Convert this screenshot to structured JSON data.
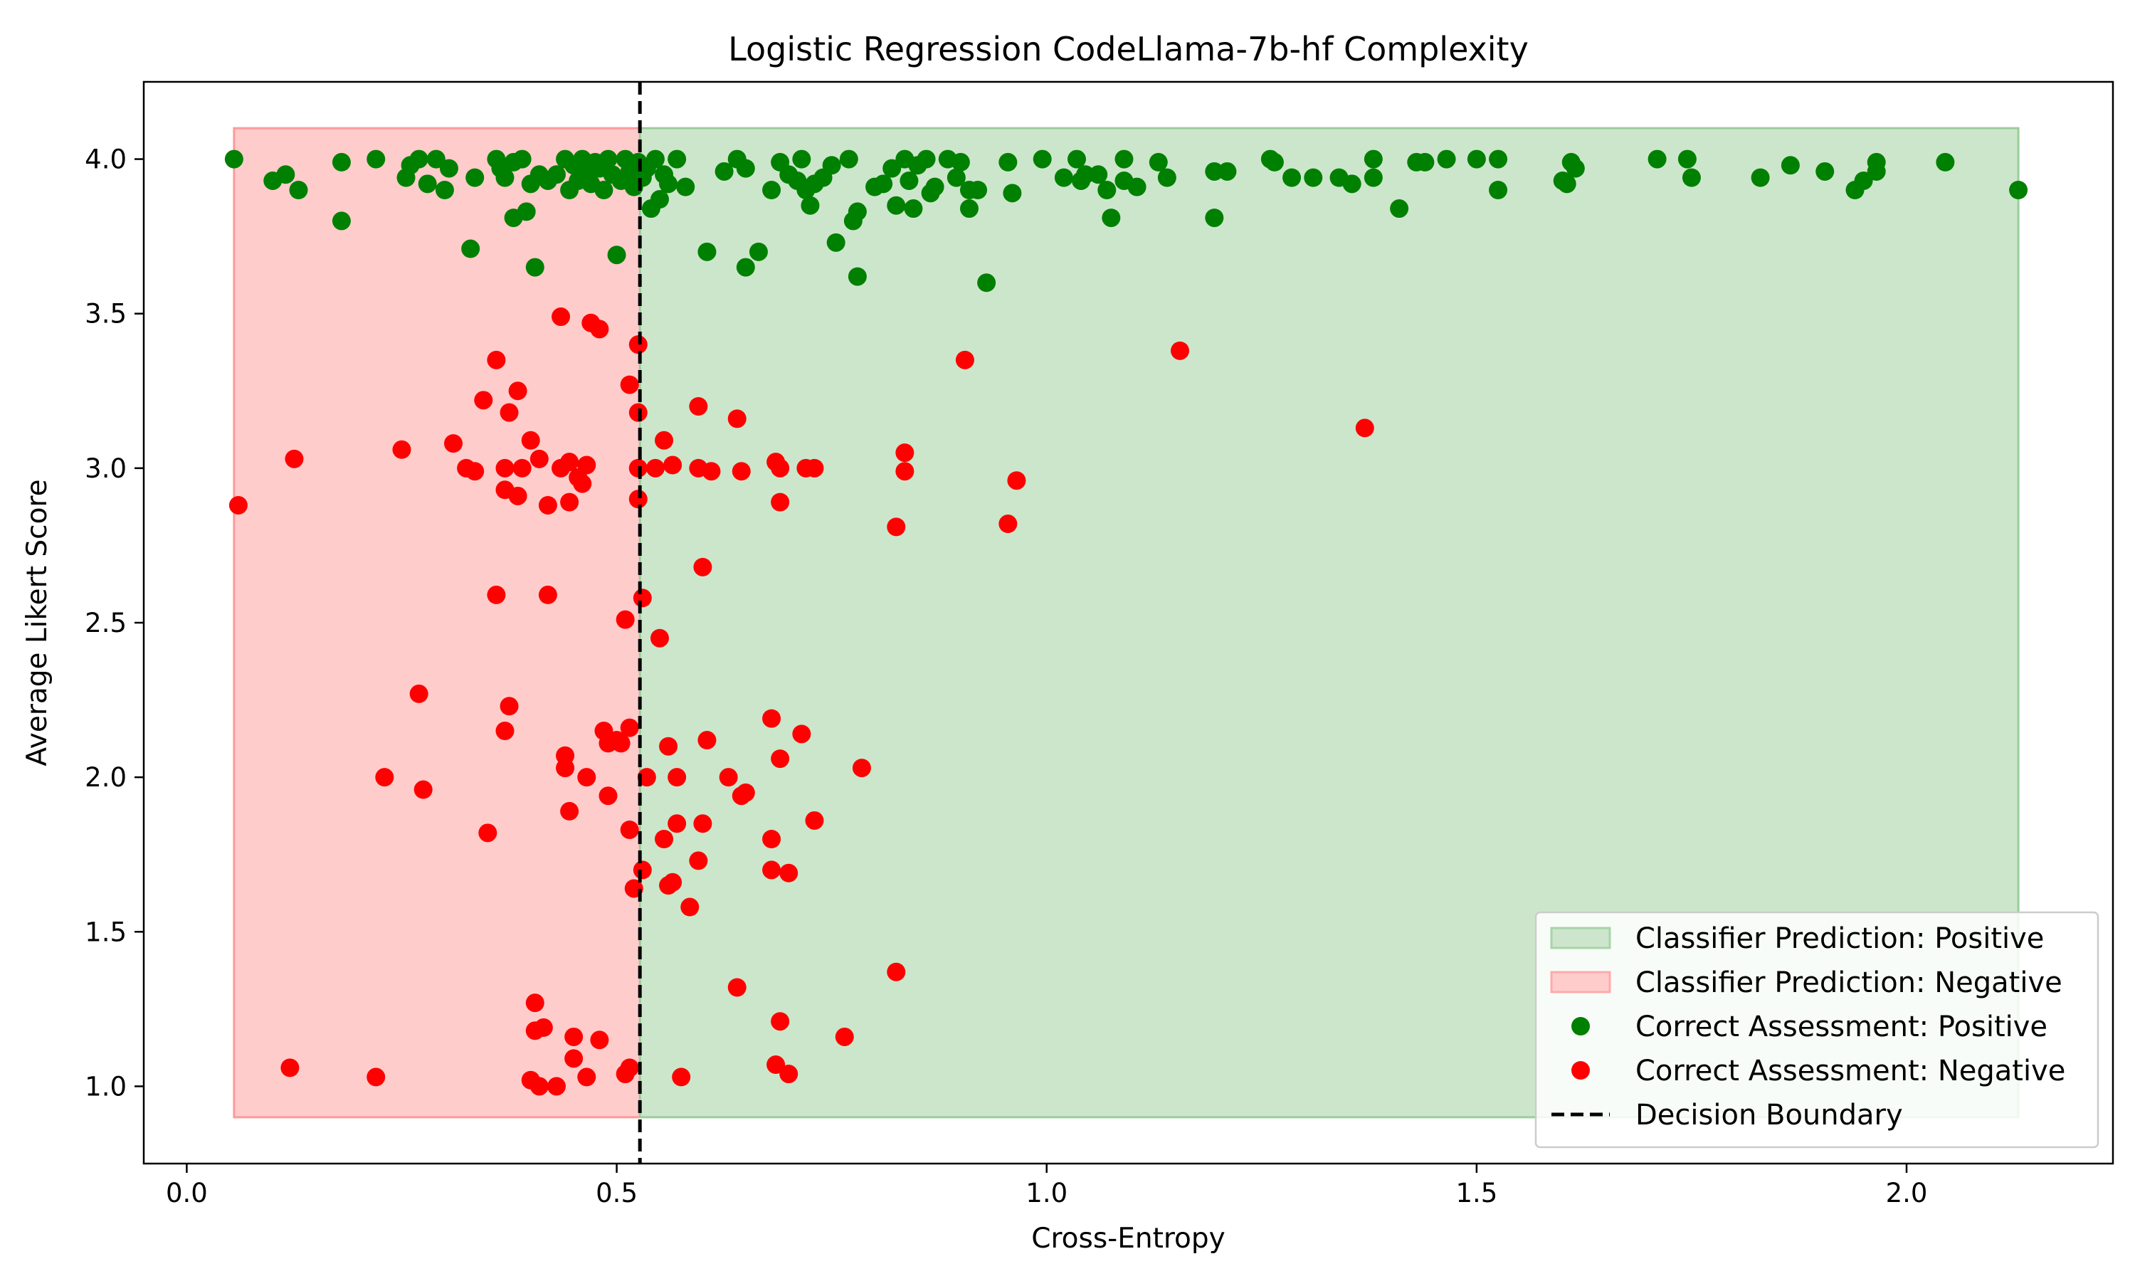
{
  "chart_data": {
    "type": "scatter",
    "title": "Logistic Regression CodeLlama-7b-hf Complexity",
    "xlabel": "Cross-Entropy",
    "ylabel": "Average Likert Score",
    "xlim": [
      -0.05,
      2.24
    ],
    "ylim": [
      0.75,
      4.25
    ],
    "xticks": [
      0.0,
      0.5,
      1.0,
      1.5,
      2.0
    ],
    "xtick_labels": [
      "0.0",
      "0.5",
      "1.0",
      "1.5",
      "2.0"
    ],
    "yticks": [
      1.0,
      1.5,
      2.0,
      2.5,
      3.0,
      3.5,
      4.0
    ],
    "ytick_labels": [
      "1.0",
      "1.5",
      "2.0",
      "2.5",
      "3.0",
      "3.5",
      "4.0"
    ],
    "grid": false,
    "legend_position": "bottom-right",
    "decision_boundary": 0.527,
    "regions": [
      {
        "name": "Classifier Prediction: Negative",
        "x": [
          0.055,
          0.527
        ],
        "y": [
          0.9,
          4.1
        ],
        "color": "#ff9999"
      },
      {
        "name": "Classifier Prediction: Positive",
        "x": [
          0.527,
          2.13
        ],
        "y": [
          0.9,
          4.1
        ],
        "color": "#9acd9a"
      }
    ],
    "legend": [
      {
        "label": "Classifier Prediction: Positive",
        "kind": "patch",
        "color": "#cde5cd",
        "edge": "#a8d4a8"
      },
      {
        "label": "Classifier Prediction: Negative",
        "kind": "patch",
        "color": "#ffcccc",
        "edge": "#ffaaaa"
      },
      {
        "label": "Correct Assessment: Positive",
        "kind": "dot",
        "color": "#008000"
      },
      {
        "label": "Correct Assessment: Negative",
        "kind": "dot",
        "color": "#ff0000"
      },
      {
        "label": "Decision Boundary",
        "kind": "dash",
        "color": "#000000"
      }
    ],
    "series": [
      {
        "name": "Correct Assessment: Positive",
        "color": "#008000",
        "points": [
          [
            0.055,
            4.0
          ],
          [
            0.1,
            3.93
          ],
          [
            0.115,
            3.95
          ],
          [
            0.13,
            3.9
          ],
          [
            0.18,
            3.99
          ],
          [
            0.18,
            3.8
          ],
          [
            0.22,
            4.0
          ],
          [
            0.255,
            3.94
          ],
          [
            0.26,
            3.98
          ],
          [
            0.27,
            4.0
          ],
          [
            0.28,
            3.92
          ],
          [
            0.29,
            4.0
          ],
          [
            0.3,
            3.9
          ],
          [
            0.305,
            3.97
          ],
          [
            0.33,
            3.71
          ],
          [
            0.335,
            3.94
          ],
          [
            0.36,
            4.0
          ],
          [
            0.365,
            3.97
          ],
          [
            0.37,
            3.94
          ],
          [
            0.38,
            3.99
          ],
          [
            0.38,
            3.81
          ],
          [
            0.39,
            4.0
          ],
          [
            0.395,
            3.83
          ],
          [
            0.4,
            3.92
          ],
          [
            0.405,
            3.65
          ],
          [
            0.41,
            3.95
          ],
          [
            0.42,
            3.93
          ],
          [
            0.43,
            3.95
          ],
          [
            0.44,
            4.0
          ],
          [
            0.445,
            3.9
          ],
          [
            0.45,
            3.98
          ],
          [
            0.455,
            3.93
          ],
          [
            0.46,
            4.0
          ],
          [
            0.465,
            3.95
          ],
          [
            0.47,
            3.92
          ],
          [
            0.475,
            3.99
          ],
          [
            0.48,
            3.97
          ],
          [
            0.485,
            3.9
          ],
          [
            0.49,
            4.0
          ],
          [
            0.495,
            3.95
          ],
          [
            0.5,
            3.69
          ],
          [
            0.505,
            3.93
          ],
          [
            0.51,
            4.0
          ],
          [
            0.515,
            3.96
          ],
          [
            0.52,
            3.91
          ],
          [
            0.525,
            3.99
          ],
          [
            0.53,
            3.94
          ],
          [
            0.535,
            3.97
          ],
          [
            0.54,
            3.84
          ],
          [
            0.545,
            4.0
          ],
          [
            0.55,
            3.87
          ],
          [
            0.555,
            3.95
          ],
          [
            0.56,
            3.92
          ],
          [
            0.57,
            4.0
          ],
          [
            0.58,
            3.91
          ],
          [
            0.605,
            3.7
          ],
          [
            0.625,
            3.96
          ],
          [
            0.64,
            4.0
          ],
          [
            0.65,
            3.97
          ],
          [
            0.65,
            3.65
          ],
          [
            0.665,
            3.7
          ],
          [
            0.68,
            3.9
          ],
          [
            0.69,
            3.99
          ],
          [
            0.7,
            3.95
          ],
          [
            0.71,
            3.93
          ],
          [
            0.715,
            4.0
          ],
          [
            0.72,
            3.9
          ],
          [
            0.725,
            3.85
          ],
          [
            0.73,
            3.92
          ],
          [
            0.74,
            3.94
          ],
          [
            0.75,
            3.98
          ],
          [
            0.755,
            3.73
          ],
          [
            0.77,
            4.0
          ],
          [
            0.775,
            3.8
          ],
          [
            0.78,
            3.83
          ],
          [
            0.78,
            3.62
          ],
          [
            0.8,
            3.91
          ],
          [
            0.81,
            3.92
          ],
          [
            0.82,
            3.97
          ],
          [
            0.825,
            3.85
          ],
          [
            0.835,
            4.0
          ],
          [
            0.84,
            3.93
          ],
          [
            0.845,
            3.84
          ],
          [
            0.85,
            3.98
          ],
          [
            0.86,
            4.0
          ],
          [
            0.865,
            3.89
          ],
          [
            0.87,
            3.91
          ],
          [
            0.885,
            4.0
          ],
          [
            0.895,
            3.94
          ],
          [
            0.9,
            3.99
          ],
          [
            0.91,
            3.9
          ],
          [
            0.91,
            3.84
          ],
          [
            0.92,
            3.9
          ],
          [
            0.93,
            3.6
          ],
          [
            0.955,
            3.99
          ],
          [
            0.96,
            3.89
          ],
          [
            0.995,
            4.0
          ],
          [
            1.02,
            3.94
          ],
          [
            1.035,
            4.0
          ],
          [
            1.04,
            3.93
          ],
          [
            1.045,
            3.95
          ],
          [
            1.06,
            3.95
          ],
          [
            1.07,
            3.9
          ],
          [
            1.075,
            3.81
          ],
          [
            1.09,
            4.0
          ],
          [
            1.09,
            3.93
          ],
          [
            1.105,
            3.91
          ],
          [
            1.13,
            3.99
          ],
          [
            1.14,
            3.94
          ],
          [
            1.195,
            3.96
          ],
          [
            1.195,
            3.81
          ],
          [
            1.21,
            3.96
          ],
          [
            1.26,
            4.0
          ],
          [
            1.265,
            3.99
          ],
          [
            1.285,
            3.94
          ],
          [
            1.31,
            3.94
          ],
          [
            1.34,
            3.94
          ],
          [
            1.355,
            3.92
          ],
          [
            1.38,
            4.0
          ],
          [
            1.38,
            3.94
          ],
          [
            1.41,
            3.84
          ],
          [
            1.43,
            3.99
          ],
          [
            1.44,
            3.99
          ],
          [
            1.465,
            4.0
          ],
          [
            1.5,
            4.0
          ],
          [
            1.525,
            4.0
          ],
          [
            1.525,
            3.9
          ],
          [
            1.6,
            3.93
          ],
          [
            1.605,
            3.92
          ],
          [
            1.61,
            3.99
          ],
          [
            1.615,
            3.97
          ],
          [
            1.71,
            4.0
          ],
          [
            1.745,
            4.0
          ],
          [
            1.75,
            3.94
          ],
          [
            1.83,
            3.94
          ],
          [
            1.865,
            3.98
          ],
          [
            1.905,
            3.96
          ],
          [
            1.94,
            3.9
          ],
          [
            1.95,
            3.93
          ],
          [
            1.965,
            3.99
          ],
          [
            1.965,
            3.96
          ],
          [
            2.045,
            3.99
          ],
          [
            2.13,
            3.9
          ]
        ]
      },
      {
        "name": "Correct Assessment: Negative",
        "color": "#ff0000",
        "points": [
          [
            0.06,
            2.88
          ],
          [
            0.125,
            3.03
          ],
          [
            0.12,
            1.06
          ],
          [
            0.22,
            1.03
          ],
          [
            0.23,
            2.0
          ],
          [
            0.25,
            3.06
          ],
          [
            0.27,
            2.27
          ],
          [
            0.275,
            1.96
          ],
          [
            0.31,
            3.08
          ],
          [
            0.325,
            3.0
          ],
          [
            0.335,
            2.99
          ],
          [
            0.345,
            3.22
          ],
          [
            0.35,
            1.82
          ],
          [
            0.36,
            3.35
          ],
          [
            0.36,
            2.59
          ],
          [
            0.37,
            3.0
          ],
          [
            0.37,
            2.93
          ],
          [
            0.37,
            2.15
          ],
          [
            0.375,
            3.18
          ],
          [
            0.375,
            2.23
          ],
          [
            0.385,
            3.25
          ],
          [
            0.385,
            2.91
          ],
          [
            0.39,
            3.0
          ],
          [
            0.4,
            3.09
          ],
          [
            0.4,
            1.02
          ],
          [
            0.405,
            1.18
          ],
          [
            0.405,
            1.27
          ],
          [
            0.41,
            3.03
          ],
          [
            0.41,
            1.0
          ],
          [
            0.415,
            1.19
          ],
          [
            0.42,
            2.88
          ],
          [
            0.42,
            2.59
          ],
          [
            0.43,
            1.0
          ],
          [
            0.435,
            3.49
          ],
          [
            0.435,
            3.0
          ],
          [
            0.44,
            2.07
          ],
          [
            0.44,
            2.03
          ],
          [
            0.445,
            2.89
          ],
          [
            0.445,
            3.02
          ],
          [
            0.445,
            1.89
          ],
          [
            0.45,
            1.16
          ],
          [
            0.45,
            1.09
          ],
          [
            0.455,
            2.97
          ],
          [
            0.46,
            2.95
          ],
          [
            0.465,
            3.01
          ],
          [
            0.465,
            2.0
          ],
          [
            0.465,
            1.03
          ],
          [
            0.47,
            3.47
          ],
          [
            0.48,
            3.45
          ],
          [
            0.48,
            1.15
          ],
          [
            0.485,
            2.15
          ],
          [
            0.49,
            2.11
          ],
          [
            0.49,
            1.94
          ],
          [
            0.5,
            2.12
          ],
          [
            0.505,
            2.11
          ],
          [
            0.51,
            2.51
          ],
          [
            0.51,
            1.04
          ],
          [
            0.515,
            3.27
          ],
          [
            0.515,
            2.16
          ],
          [
            0.515,
            1.83
          ],
          [
            0.515,
            1.06
          ],
          [
            0.52,
            1.64
          ],
          [
            0.525,
            3.4
          ],
          [
            0.525,
            3.0
          ],
          [
            0.525,
            3.18
          ],
          [
            0.525,
            2.9
          ],
          [
            0.53,
            2.58
          ],
          [
            0.53,
            1.7
          ],
          [
            0.535,
            2.0
          ],
          [
            0.545,
            3.0
          ],
          [
            0.55,
            2.45
          ],
          [
            0.555,
            3.09
          ],
          [
            0.555,
            1.8
          ],
          [
            0.56,
            2.1
          ],
          [
            0.56,
            1.65
          ],
          [
            0.565,
            3.01
          ],
          [
            0.565,
            1.66
          ],
          [
            0.57,
            2.0
          ],
          [
            0.57,
            1.85
          ],
          [
            0.575,
            1.03
          ],
          [
            0.585,
            1.58
          ],
          [
            0.595,
            3.2
          ],
          [
            0.595,
            3.0
          ],
          [
            0.595,
            1.73
          ],
          [
            0.6,
            2.68
          ],
          [
            0.6,
            1.85
          ],
          [
            0.605,
            2.12
          ],
          [
            0.61,
            2.99
          ],
          [
            0.63,
            2.0
          ],
          [
            0.64,
            3.16
          ],
          [
            0.64,
            1.32
          ],
          [
            0.645,
            2.99
          ],
          [
            0.645,
            1.94
          ],
          [
            0.65,
            1.95
          ],
          [
            0.68,
            2.19
          ],
          [
            0.68,
            1.8
          ],
          [
            0.68,
            1.7
          ],
          [
            0.685,
            1.07
          ],
          [
            0.685,
            3.02
          ],
          [
            0.69,
            3.0
          ],
          [
            0.69,
            2.89
          ],
          [
            0.69,
            2.06
          ],
          [
            0.69,
            1.21
          ],
          [
            0.7,
            1.69
          ],
          [
            0.7,
            1.04
          ],
          [
            0.715,
            2.14
          ],
          [
            0.72,
            3.0
          ],
          [
            0.73,
            3.0
          ],
          [
            0.73,
            1.86
          ],
          [
            0.765,
            1.16
          ],
          [
            0.785,
            2.03
          ],
          [
            0.825,
            2.81
          ],
          [
            0.825,
            1.37
          ],
          [
            0.835,
            3.05
          ],
          [
            0.835,
            2.99
          ],
          [
            0.905,
            3.35
          ],
          [
            0.955,
            2.82
          ],
          [
            0.965,
            2.96
          ],
          [
            1.155,
            3.38
          ],
          [
            1.37,
            3.13
          ]
        ]
      }
    ]
  }
}
